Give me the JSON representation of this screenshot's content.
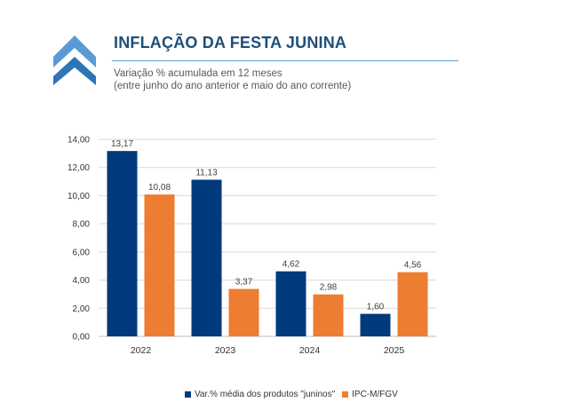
{
  "header": {
    "title": "INFLAÇÃO DA FESTA JUNINA",
    "subtitle_line1": "Variação % acumulada em 12 meses",
    "subtitle_line2": "(entre junho do ano anterior e maio do ano corrente)"
  },
  "logo": {
    "icon": "double-chevron-up-icon",
    "colors": [
      "#5b9bd5",
      "#2e75b6"
    ]
  },
  "chart_data": {
    "type": "bar",
    "categories": [
      "2022",
      "2023",
      "2024",
      "2025"
    ],
    "series": [
      {
        "name": "Var.% média dos produtos \"juninos\"",
        "color": "#003a7d",
        "values": [
          13.17,
          11.13,
          4.62,
          1.6
        ],
        "labels": [
          "13,17",
          "11,13",
          "4,62",
          "1,60"
        ]
      },
      {
        "name": "IPC-M/FGV",
        "color": "#ed7d31",
        "values": [
          10.08,
          3.37,
          2.98,
          4.56
        ],
        "labels": [
          "10,08",
          "3,37",
          "2,98",
          "4,56"
        ]
      }
    ],
    "ylim": [
      0,
      14
    ],
    "yticks": [
      0,
      2,
      4,
      6,
      8,
      10,
      12,
      14
    ],
    "ytick_labels": [
      "0,00",
      "2,00",
      "4,00",
      "6,00",
      "8,00",
      "10,00",
      "12,00",
      "14,00"
    ],
    "grid": true,
    "legend_position": "bottom",
    "title": "",
    "xlabel": "",
    "ylabel": ""
  }
}
